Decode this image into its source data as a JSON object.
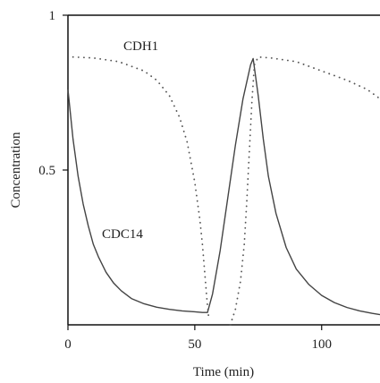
{
  "chart_data": {
    "type": "line",
    "title": "",
    "xlabel": "Time (min)",
    "ylabel": "Concentration",
    "xlim": [
      0,
      123
    ],
    "ylim": [
      0,
      1
    ],
    "xticks": [
      0,
      50,
      100
    ],
    "xtick_labels": [
      "0",
      "50",
      "100"
    ],
    "yticks": [
      0.5,
      1
    ],
    "ytick_labels": [
      "0.5",
      "1"
    ],
    "grid": false,
    "legend": "none",
    "series": [
      {
        "name": "CDC14",
        "style": "solid",
        "color": "#444444",
        "x": [
          0,
          2,
          4,
          6,
          8,
          10,
          12,
          15,
          18,
          21,
          25,
          30,
          35,
          40,
          45,
          50,
          53,
          55,
          57,
          60,
          63,
          66,
          69,
          72,
          73,
          75,
          77,
          79,
          82,
          86,
          90,
          95,
          100,
          105,
          110,
          115,
          120,
          123
        ],
        "y": [
          0.76,
          0.6,
          0.48,
          0.39,
          0.32,
          0.26,
          0.22,
          0.17,
          0.135,
          0.11,
          0.085,
          0.068,
          0.057,
          0.05,
          0.045,
          0.042,
          0.04,
          0.04,
          0.1,
          0.24,
          0.41,
          0.58,
          0.73,
          0.84,
          0.86,
          0.74,
          0.6,
          0.48,
          0.36,
          0.25,
          0.18,
          0.13,
          0.095,
          0.072,
          0.056,
          0.045,
          0.037,
          0.033
        ]
      },
      {
        "name": "CDH1",
        "style": "dotted",
        "color": "#555555",
        "x": [
          2,
          10,
          20,
          30,
          35,
          40,
          44,
          47,
          50,
          52,
          53,
          54,
          54.8,
          55.5
        ],
        "y": [
          0.865,
          0.862,
          0.85,
          0.82,
          0.79,
          0.74,
          0.67,
          0.59,
          0.46,
          0.34,
          0.26,
          0.16,
          0.08,
          0.02
        ]
      },
      {
        "name": "CDH1",
        "style": "dotted",
        "color": "#555555",
        "x": [
          64,
          66,
          68,
          69.5,
          70.5,
          71.5,
          72.5,
          73.5,
          75,
          80,
          90,
          100,
          110,
          118,
          123
        ],
        "y": [
          0,
          0.05,
          0.14,
          0.26,
          0.4,
          0.56,
          0.72,
          0.84,
          0.865,
          0.862,
          0.85,
          0.82,
          0.79,
          0.76,
          0.73
        ]
      }
    ],
    "annotations": [
      {
        "text": "CDH1",
        "series": "CDH1"
      },
      {
        "text": "CDC14",
        "series": "CDC14"
      }
    ]
  }
}
